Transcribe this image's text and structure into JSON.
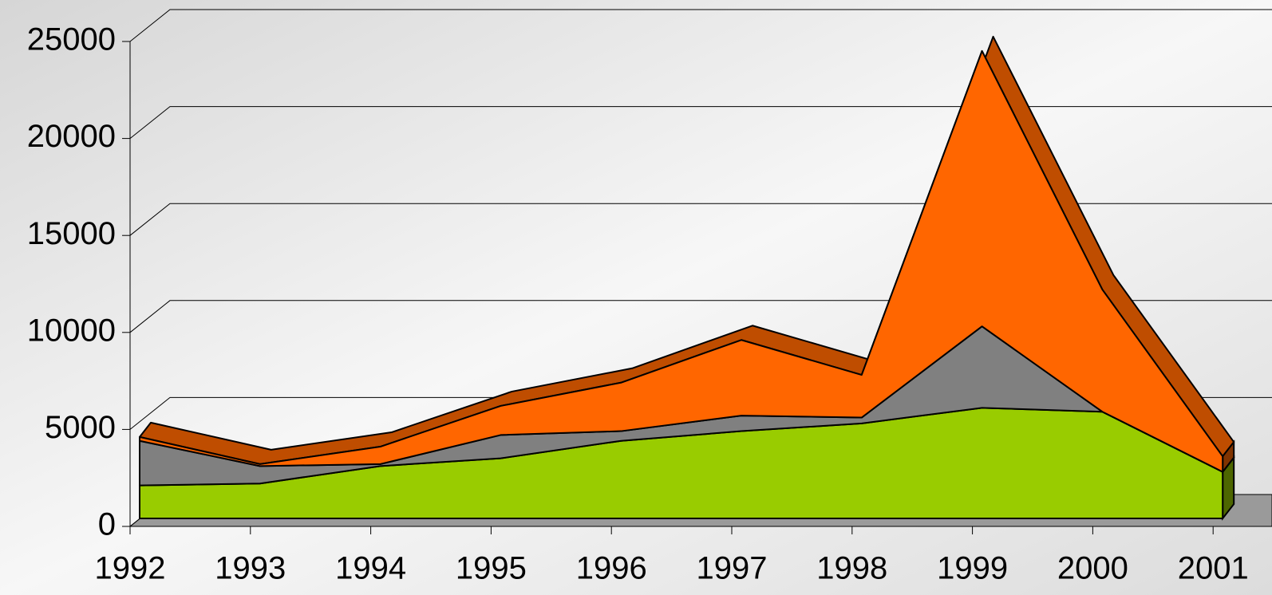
{
  "chart_data": {
    "type": "area",
    "stacked": true,
    "three_d": true,
    "categories": [
      "1992",
      "1993",
      "1994",
      "1995",
      "1996",
      "1997",
      "1998",
      "1999",
      "2000",
      "2001"
    ],
    "series": [
      {
        "color": "#99cc00",
        "values": [
          1700,
          1800,
          2700,
          3100,
          4000,
          4500,
          4900,
          5700,
          5500,
          2400
        ]
      },
      {
        "color": "#808080",
        "values": [
          2300,
          900,
          100,
          1200,
          500,
          800,
          300,
          4200,
          0,
          0
        ]
      },
      {
        "color": "#ff6600",
        "values": [
          200,
          100,
          900,
          1500,
          2500,
          3900,
          2200,
          14200,
          6300,
          800
        ]
      }
    ],
    "ylim": [
      0,
      25000
    ],
    "yticks": [
      0,
      5000,
      10000,
      15000,
      20000,
      25000
    ],
    "grid": true
  }
}
